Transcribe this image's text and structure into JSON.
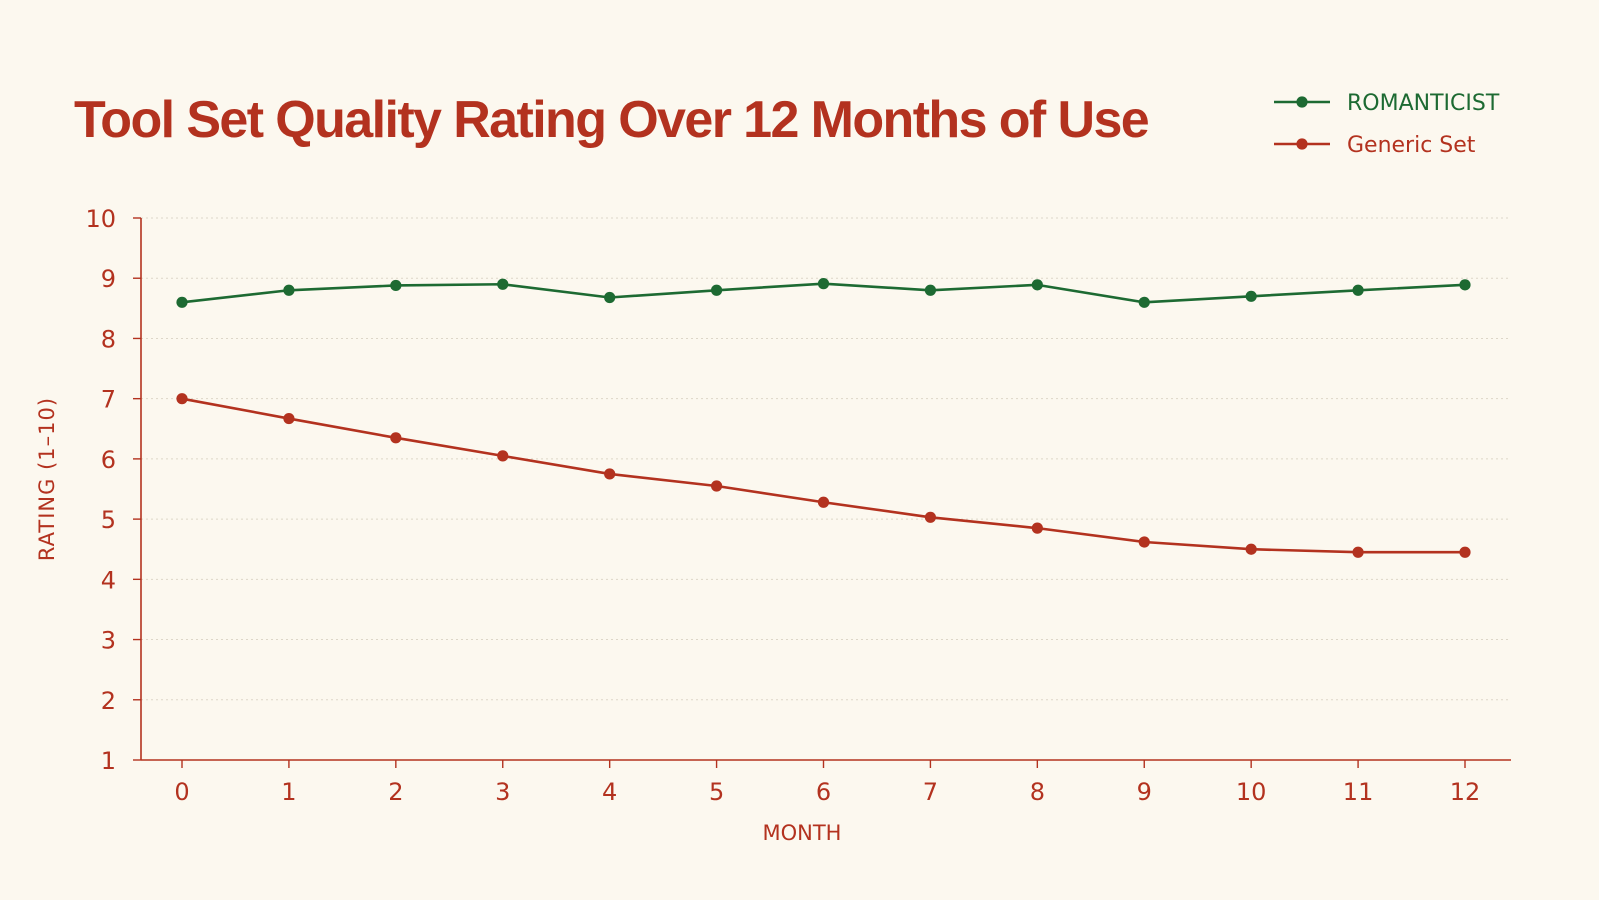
{
  "chart_data": {
    "type": "line",
    "title": "Tool Set Quality Rating Over 12 Months of Use",
    "xlabel": "MONTH",
    "ylabel": "RATING (1–10)",
    "x": [
      0,
      1,
      2,
      3,
      4,
      5,
      6,
      7,
      8,
      9,
      10,
      11,
      12
    ],
    "x_ticks": [
      "0",
      "1",
      "2",
      "3",
      "4",
      "5",
      "6",
      "7",
      "8",
      "9",
      "10",
      "11",
      "12"
    ],
    "y_ticks": [
      "1",
      "2",
      "3",
      "4",
      "5",
      "6",
      "7",
      "8",
      "9",
      "10"
    ],
    "ylim": [
      1,
      10
    ],
    "xlim": [
      0,
      12
    ],
    "grid": true,
    "legend_position": "top-right",
    "series": [
      {
        "name": "ROMANTICIST",
        "color": "#1d6a32",
        "values": [
          8.6,
          8.8,
          8.88,
          8.9,
          8.68,
          8.8,
          8.91,
          8.8,
          8.89,
          8.6,
          8.7,
          8.8,
          8.89
        ]
      },
      {
        "name": "Generic Set",
        "color": "#b3321f",
        "values": [
          7.0,
          6.67,
          6.35,
          6.05,
          5.75,
          5.55,
          5.28,
          5.03,
          4.85,
          4.62,
          4.5,
          4.45,
          4.45
        ]
      }
    ],
    "colors": {
      "title": "#b3321f",
      "axis": "#b3321f",
      "grid": "#ddd6c8",
      "background": "#fcf8ef"
    }
  }
}
